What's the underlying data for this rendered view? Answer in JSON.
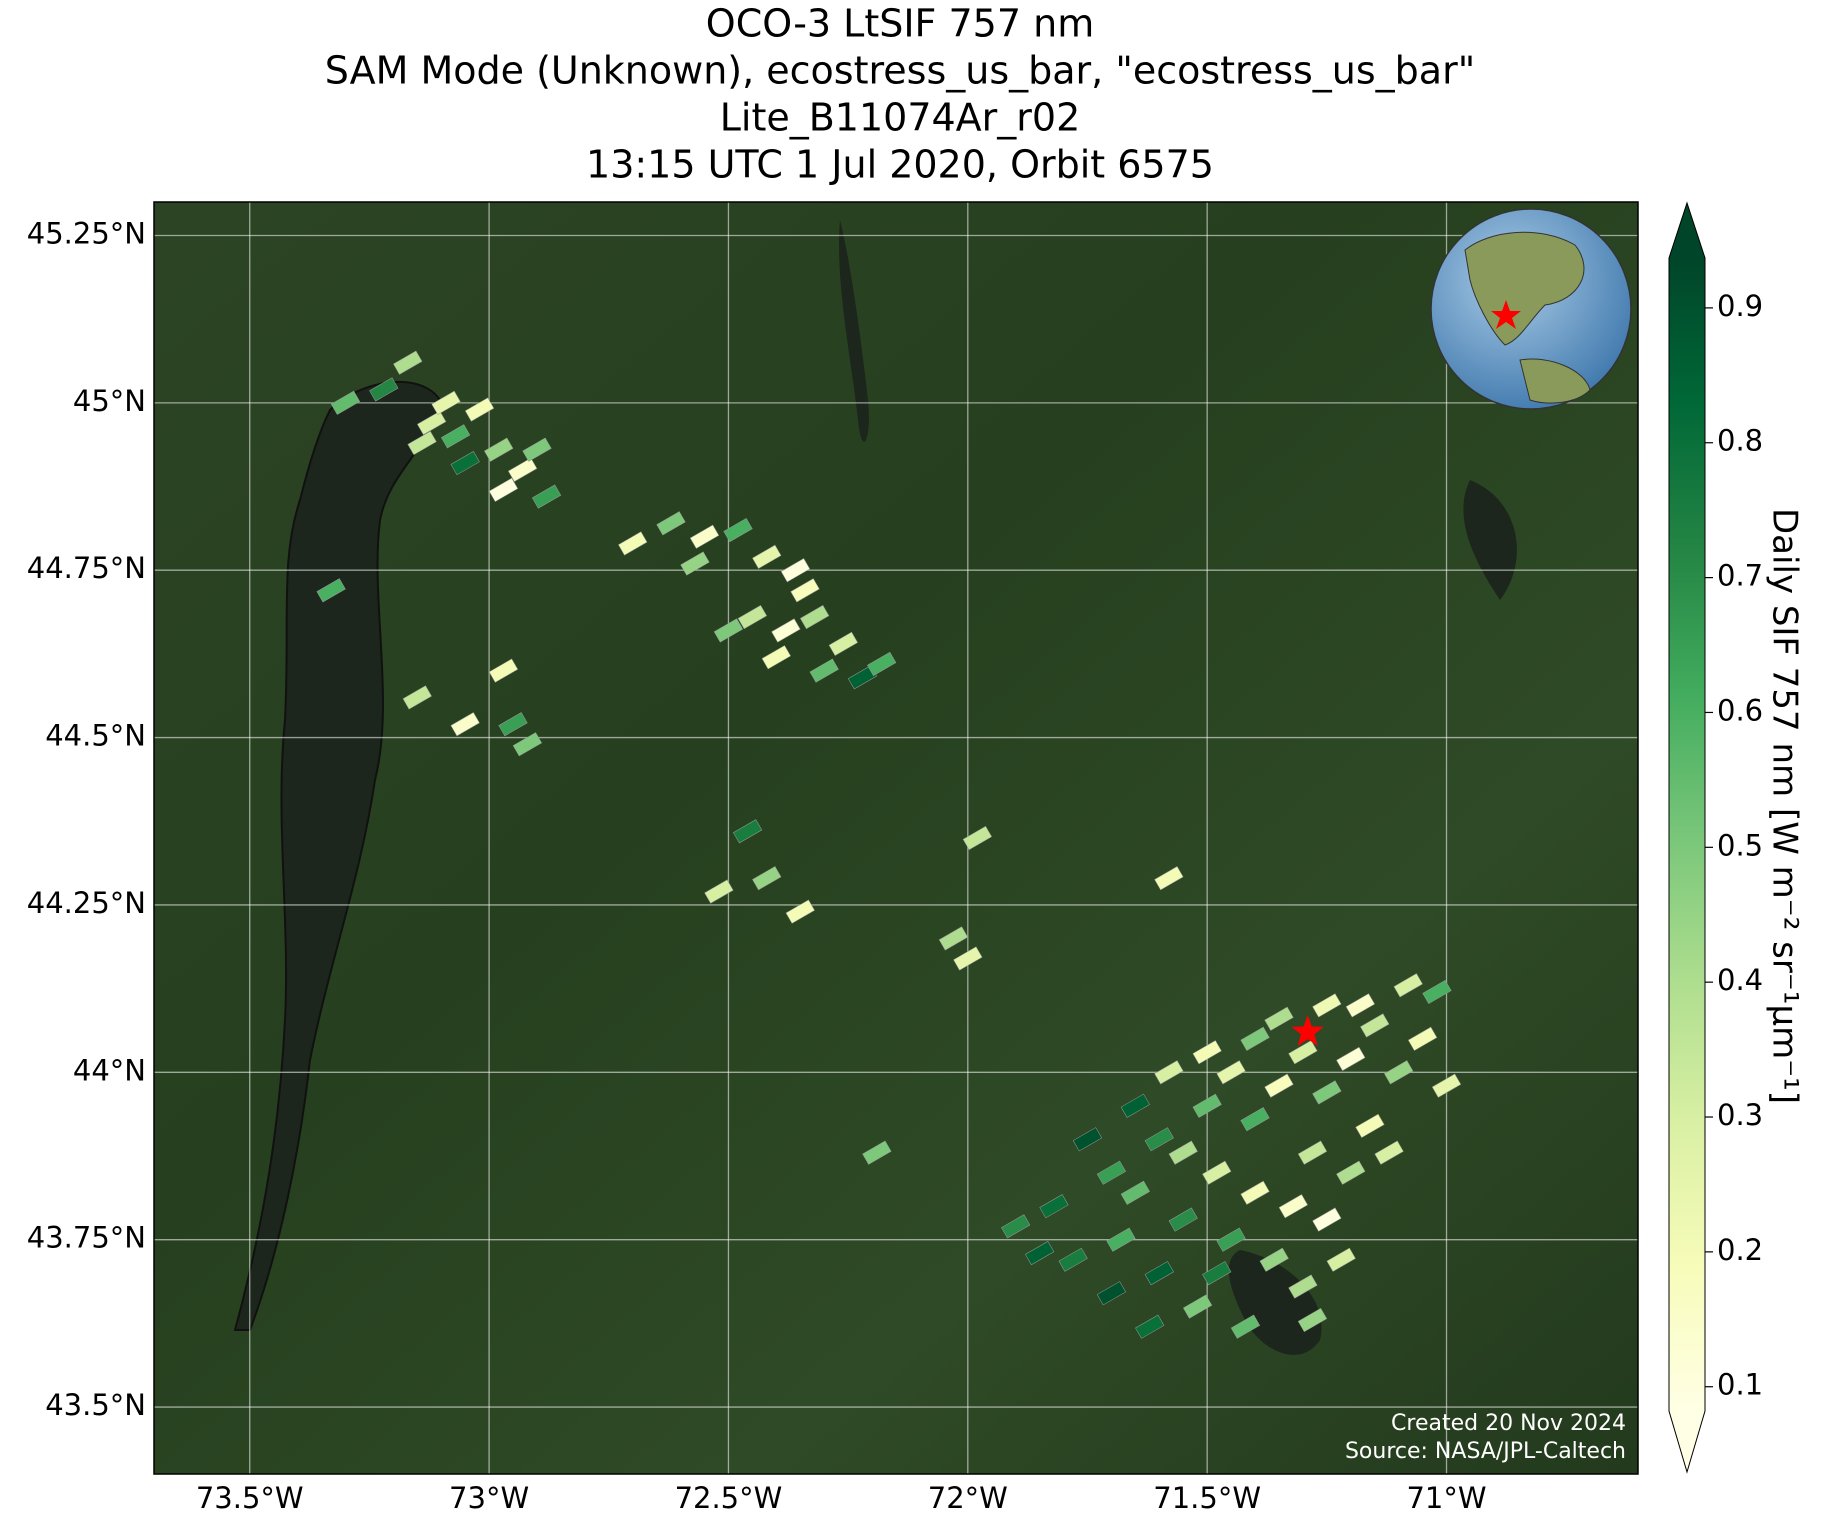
{
  "chart_data": {
    "type": "map-scatter",
    "title": [
      "OCO-3 LtSIF 757 nm",
      "SAM Mode (Unknown), ecostress_us_bar, \"ecostress_us_bar\"",
      "Lite_B11074Ar_r02",
      "13:15 UTC 1 Jul 2020, Orbit 6575"
    ],
    "xlim": [
      -73.7,
      -70.6
    ],
    "ylim": [
      43.4,
      45.3
    ],
    "xticks": [
      {
        "value": -73.5,
        "label": "73.5°W"
      },
      {
        "value": -73,
        "label": "73°W"
      },
      {
        "value": -72.5,
        "label": "72.5°W"
      },
      {
        "value": -72,
        "label": "72°W"
      },
      {
        "value": -71.5,
        "label": "71.5°W"
      },
      {
        "value": -71,
        "label": "71°W"
      }
    ],
    "yticks": [
      {
        "value": 43.5,
        "label": "43.5°N"
      },
      {
        "value": 43.75,
        "label": "43.75°N"
      },
      {
        "value": 44,
        "label": "44°N"
      },
      {
        "value": 44.25,
        "label": "44.25°N"
      },
      {
        "value": 44.5,
        "label": "44.5°N"
      },
      {
        "value": 44.75,
        "label": "44.75°N"
      },
      {
        "value": 45,
        "label": "45°N"
      },
      {
        "value": 45.25,
        "label": "45.25°N"
      }
    ],
    "grid": true,
    "colorbar": {
      "label": "Daily SIF 757 nm [W m⁻² sr⁻¹μm⁻¹]",
      "clim": [
        0.082,
        0.937
      ],
      "ticks": [
        0.1,
        0.2,
        0.3,
        0.4,
        0.5,
        0.6,
        0.7,
        0.8,
        0.9
      ],
      "colors": [
        "#ffffe5",
        "#f7fcb9",
        "#d9f0a3",
        "#addd8e",
        "#78c679",
        "#41ab5d",
        "#238443",
        "#006837",
        "#004529"
      ]
    },
    "site": {
      "lon": -71.29,
      "lat": 44.06,
      "color": "#ff0000"
    },
    "annotations": [
      "Created 20 Nov 2024",
      "Source: NASA/JPL-Caltech"
    ],
    "lon": [
      -73.3,
      -73.22,
      -73.17,
      -73.12,
      -73.07,
      -73.02,
      -72.98,
      -72.93,
      -73.05,
      -73.14,
      -72.9,
      -72.97,
      -72.88,
      -73.09,
      -72.7,
      -72.62,
      -72.55,
      -72.48,
      -72.42,
      -72.36,
      -72.57,
      -72.45,
      -72.38,
      -72.32,
      -72.26,
      -72.4,
      -72.3,
      -72.22,
      -72.18,
      -72.5,
      -72.34,
      -73.33,
      -73.15,
      -72.97,
      -72.95,
      -72.92,
      -73.05,
      -72.46,
      -72.52,
      -72.42,
      -72.35,
      -72.03,
      -72.0,
      -71.98,
      -71.58,
      -72.19,
      -71.62,
      -71.7,
      -71.78,
      -71.68,
      -71.6,
      -71.55,
      -71.52,
      -71.48,
      -71.45,
      -71.4,
      -71.36,
      -71.32,
      -71.28,
      -71.25,
      -71.2,
      -71.16,
      -71.12,
      -71.5,
      -71.45,
      -71.4,
      -71.35,
      -71.3,
      -71.25,
      -71.2,
      -71.15,
      -71.1,
      -71.05,
      -71.02,
      -71.08,
      -71.18,
      -71.35,
      -71.25,
      -71.6,
      -71.65,
      -71.7,
      -71.75,
      -71.82,
      -71.55,
      -71.58,
      -71.5,
      -71.4,
      -71.0,
      -71.42,
      -71.3,
      -71.22,
      -71.48,
      -71.85,
      -71.9,
      -71.65,
      -71.28
    ],
    "lat": [
      45.0,
      45.02,
      45.06,
      44.97,
      44.95,
      44.99,
      44.93,
      44.9,
      44.91,
      44.94,
      44.93,
      44.87,
      44.86,
      45.0,
      44.79,
      44.82,
      44.8,
      44.81,
      44.77,
      44.75,
      44.76,
      44.68,
      44.66,
      44.68,
      44.64,
      44.62,
      44.6,
      44.59,
      44.61,
      44.66,
      44.72,
      44.72,
      44.56,
      44.6,
      44.52,
      44.49,
      44.52,
      44.36,
      44.27,
      44.29,
      44.24,
      44.2,
      44.17,
      44.35,
      44.29,
      43.88,
      43.62,
      43.67,
      43.72,
      43.75,
      43.7,
      43.78,
      43.65,
      43.85,
      43.75,
      43.82,
      43.72,
      43.8,
      43.88,
      43.78,
      43.85,
      43.92,
      43.88,
      43.95,
      44.0,
      43.93,
      43.98,
      44.03,
      43.97,
      44.02,
      44.07,
      44.0,
      44.05,
      44.12,
      44.13,
      44.1,
      44.08,
      44.1,
      43.9,
      43.95,
      43.85,
      43.9,
      43.8,
      43.88,
      44.0,
      44.03,
      44.05,
      43.98,
      43.62,
      43.68,
      43.72,
      43.7,
      43.73,
      43.77,
      43.82,
      43.63
    ],
    "sif": [
      0.55,
      0.72,
      0.4,
      0.3,
      0.6,
      0.2,
      0.45,
      0.15,
      0.8,
      0.35,
      0.5,
      0.1,
      0.65,
      0.25,
      0.2,
      0.5,
      0.15,
      0.6,
      0.25,
      0.1,
      0.45,
      0.35,
      0.12,
      0.4,
      0.3,
      0.2,
      0.55,
      0.85,
      0.6,
      0.5,
      0.18,
      0.6,
      0.35,
      0.2,
      0.65,
      0.5,
      0.15,
      0.75,
      0.3,
      0.45,
      0.2,
      0.4,
      0.25,
      0.35,
      0.2,
      0.5,
      0.8,
      0.9,
      0.75,
      0.6,
      0.85,
      0.7,
      0.5,
      0.3,
      0.65,
      0.2,
      0.45,
      0.15,
      0.35,
      0.1,
      0.4,
      0.2,
      0.3,
      0.55,
      0.25,
      0.6,
      0.18,
      0.3,
      0.5,
      0.12,
      0.35,
      0.45,
      0.2,
      0.6,
      0.3,
      0.15,
      0.4,
      0.22,
      0.7,
      0.85,
      0.65,
      0.9,
      0.8,
      0.4,
      0.3,
      0.2,
      0.5,
      0.25,
      0.55,
      0.4,
      0.3,
      0.75,
      0.85,
      0.7,
      0.55,
      0.45
    ]
  }
}
